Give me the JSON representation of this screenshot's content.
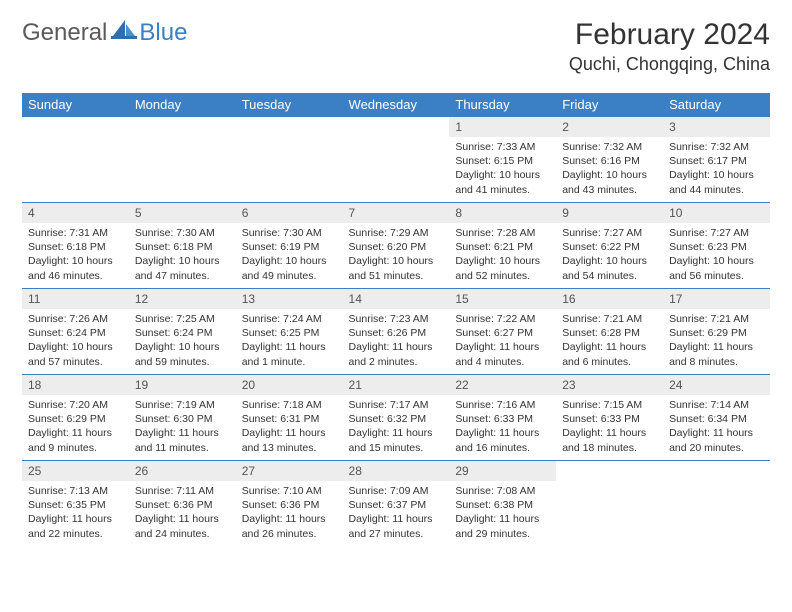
{
  "logo": {
    "part1": "General",
    "part2": "Blue"
  },
  "title": "February 2024",
  "location": "Quchi, Chongqing, China",
  "colors": {
    "header_bg": "#3b7fc4",
    "header_text": "#ffffff",
    "daynum_bg": "#ededed",
    "row_border": "#3b7fc4",
    "body_text": "#333333"
  },
  "dayHeaders": [
    "Sunday",
    "Monday",
    "Tuesday",
    "Wednesday",
    "Thursday",
    "Friday",
    "Saturday"
  ],
  "weeks": [
    [
      null,
      null,
      null,
      null,
      {
        "n": "1",
        "sr": "7:33 AM",
        "ss": "6:15 PM",
        "dl": "10 hours and 41 minutes."
      },
      {
        "n": "2",
        "sr": "7:32 AM",
        "ss": "6:16 PM",
        "dl": "10 hours and 43 minutes."
      },
      {
        "n": "3",
        "sr": "7:32 AM",
        "ss": "6:17 PM",
        "dl": "10 hours and 44 minutes."
      }
    ],
    [
      {
        "n": "4",
        "sr": "7:31 AM",
        "ss": "6:18 PM",
        "dl": "10 hours and 46 minutes."
      },
      {
        "n": "5",
        "sr": "7:30 AM",
        "ss": "6:18 PM",
        "dl": "10 hours and 47 minutes."
      },
      {
        "n": "6",
        "sr": "7:30 AM",
        "ss": "6:19 PM",
        "dl": "10 hours and 49 minutes."
      },
      {
        "n": "7",
        "sr": "7:29 AM",
        "ss": "6:20 PM",
        "dl": "10 hours and 51 minutes."
      },
      {
        "n": "8",
        "sr": "7:28 AM",
        "ss": "6:21 PM",
        "dl": "10 hours and 52 minutes."
      },
      {
        "n": "9",
        "sr": "7:27 AM",
        "ss": "6:22 PM",
        "dl": "10 hours and 54 minutes."
      },
      {
        "n": "10",
        "sr": "7:27 AM",
        "ss": "6:23 PM",
        "dl": "10 hours and 56 minutes."
      }
    ],
    [
      {
        "n": "11",
        "sr": "7:26 AM",
        "ss": "6:24 PM",
        "dl": "10 hours and 57 minutes."
      },
      {
        "n": "12",
        "sr": "7:25 AM",
        "ss": "6:24 PM",
        "dl": "10 hours and 59 minutes."
      },
      {
        "n": "13",
        "sr": "7:24 AM",
        "ss": "6:25 PM",
        "dl": "11 hours and 1 minute."
      },
      {
        "n": "14",
        "sr": "7:23 AM",
        "ss": "6:26 PM",
        "dl": "11 hours and 2 minutes."
      },
      {
        "n": "15",
        "sr": "7:22 AM",
        "ss": "6:27 PM",
        "dl": "11 hours and 4 minutes."
      },
      {
        "n": "16",
        "sr": "7:21 AM",
        "ss": "6:28 PM",
        "dl": "11 hours and 6 minutes."
      },
      {
        "n": "17",
        "sr": "7:21 AM",
        "ss": "6:29 PM",
        "dl": "11 hours and 8 minutes."
      }
    ],
    [
      {
        "n": "18",
        "sr": "7:20 AM",
        "ss": "6:29 PM",
        "dl": "11 hours and 9 minutes."
      },
      {
        "n": "19",
        "sr": "7:19 AM",
        "ss": "6:30 PM",
        "dl": "11 hours and 11 minutes."
      },
      {
        "n": "20",
        "sr": "7:18 AM",
        "ss": "6:31 PM",
        "dl": "11 hours and 13 minutes."
      },
      {
        "n": "21",
        "sr": "7:17 AM",
        "ss": "6:32 PM",
        "dl": "11 hours and 15 minutes."
      },
      {
        "n": "22",
        "sr": "7:16 AM",
        "ss": "6:33 PM",
        "dl": "11 hours and 16 minutes."
      },
      {
        "n": "23",
        "sr": "7:15 AM",
        "ss": "6:33 PM",
        "dl": "11 hours and 18 minutes."
      },
      {
        "n": "24",
        "sr": "7:14 AM",
        "ss": "6:34 PM",
        "dl": "11 hours and 20 minutes."
      }
    ],
    [
      {
        "n": "25",
        "sr": "7:13 AM",
        "ss": "6:35 PM",
        "dl": "11 hours and 22 minutes."
      },
      {
        "n": "26",
        "sr": "7:11 AM",
        "ss": "6:36 PM",
        "dl": "11 hours and 24 minutes."
      },
      {
        "n": "27",
        "sr": "7:10 AM",
        "ss": "6:36 PM",
        "dl": "11 hours and 26 minutes."
      },
      {
        "n": "28",
        "sr": "7:09 AM",
        "ss": "6:37 PM",
        "dl": "11 hours and 27 minutes."
      },
      {
        "n": "29",
        "sr": "7:08 AM",
        "ss": "6:38 PM",
        "dl": "11 hours and 29 minutes."
      },
      null,
      null
    ]
  ],
  "labels": {
    "sunrise": "Sunrise:",
    "sunset": "Sunset:",
    "daylight": "Daylight:"
  }
}
